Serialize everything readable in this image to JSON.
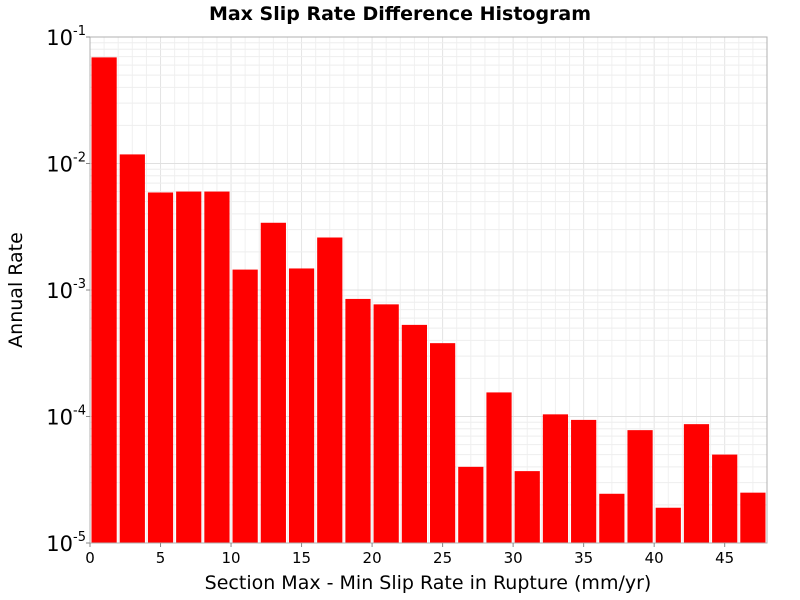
{
  "chart_data": {
    "type": "bar",
    "title": "Max Slip Rate Difference Histogram",
    "xlabel": "Section Max - Min Slip Rate in Rupture (mm/yr)",
    "ylabel": "Annual Rate",
    "y_scale": "log",
    "xlim": [
      0,
      48
    ],
    "ylim": [
      1e-05,
      0.1
    ],
    "grid": true,
    "bin_width": 2,
    "x_ticks": [
      "0",
      "5",
      "10",
      "15",
      "20",
      "25",
      "30",
      "35",
      "40",
      "45"
    ],
    "y_ticks": [
      {
        "base": "10",
        "exp": "-1"
      },
      {
        "base": "10",
        "exp": "-2"
      },
      {
        "base": "10",
        "exp": "-3"
      },
      {
        "base": "10",
        "exp": "-4"
      },
      {
        "base": "10",
        "exp": "-5"
      }
    ],
    "bar_color": "#ff0000",
    "bins": [
      {
        "x": 1,
        "value": 0.069
      },
      {
        "x": 3,
        "value": 0.0118
      },
      {
        "x": 5,
        "value": 0.0059
      },
      {
        "x": 7,
        "value": 0.006
      },
      {
        "x": 9,
        "value": 0.006
      },
      {
        "x": 11,
        "value": 0.00145
      },
      {
        "x": 13,
        "value": 0.0034
      },
      {
        "x": 15,
        "value": 0.00148
      },
      {
        "x": 17,
        "value": 0.0026
      },
      {
        "x": 19,
        "value": 0.00085
      },
      {
        "x": 21,
        "value": 0.00077
      },
      {
        "x": 23,
        "value": 0.00053
      },
      {
        "x": 25,
        "value": 0.00038
      },
      {
        "x": 27,
        "value": 4e-05
      },
      {
        "x": 29,
        "value": 0.000155
      },
      {
        "x": 31,
        "value": 3.7e-05
      },
      {
        "x": 33,
        "value": 0.000104
      },
      {
        "x": 35,
        "value": 9.4e-05
      },
      {
        "x": 37,
        "value": 2.45e-05
      },
      {
        "x": 39,
        "value": 7.8e-05
      },
      {
        "x": 41,
        "value": 1.9e-05
      },
      {
        "x": 43,
        "value": 8.7e-05
      },
      {
        "x": 45,
        "value": 5e-05
      },
      {
        "x": 47,
        "value": 2.5e-05
      }
    ]
  }
}
